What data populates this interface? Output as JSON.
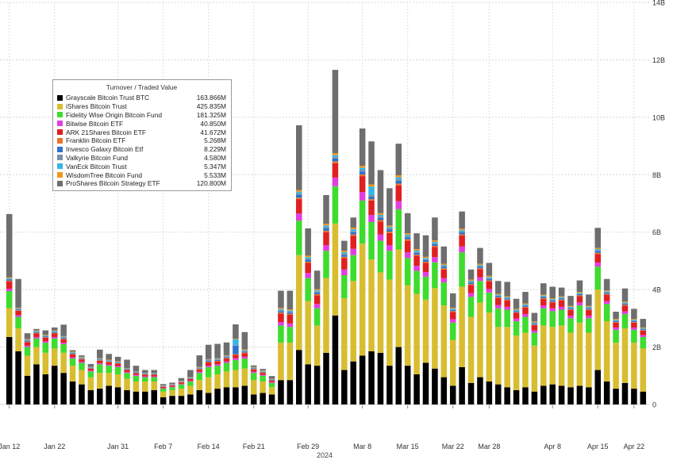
{
  "chart_data": {
    "type": "bar",
    "stacked": true,
    "title": "",
    "xlabel": "2024",
    "ylabel": "",
    "ylim": [
      0,
      14
    ],
    "y_unit": "B",
    "ytick_labels": [
      "0",
      "2B",
      "4B",
      "6B",
      "8B",
      "10B",
      "12B",
      "14B"
    ],
    "xtick_labels": [
      "Jan 12",
      "Jan 22",
      "Jan 31",
      "Feb 7",
      "Feb 14",
      "Feb 21",
      "Feb 29",
      "Mar 8",
      "Mar 15",
      "Mar 22",
      "Mar 28",
      "Apr 8",
      "Apr 15",
      "Apr 22"
    ],
    "xtick_index": [
      0,
      5,
      12,
      17,
      22,
      27,
      33,
      39,
      44,
      49,
      53,
      60,
      65,
      69
    ],
    "grid": true,
    "legend_position": "top-left",
    "legend_title": "Turnover / Traded Value",
    "n_bars": 71,
    "series": [
      {
        "name": "Grayscale Bitcoin Trust BTC",
        "legend_value": "163.866M",
        "color": "#000000",
        "values": [
          2.35,
          1.85,
          1.0,
          1.4,
          1.05,
          1.35,
          1.1,
          0.8,
          0.7,
          0.5,
          0.55,
          0.65,
          0.6,
          0.5,
          0.45,
          0.45,
          0.5,
          0.25,
          0.3,
          0.3,
          0.35,
          0.5,
          0.4,
          0.55,
          0.6,
          0.6,
          0.65,
          0.35,
          0.4,
          0.35,
          0.85,
          0.85,
          1.9,
          1.4,
          1.35,
          1.8,
          3.1,
          1.2,
          1.5,
          1.7,
          1.85,
          1.8,
          1.35,
          2.0,
          1.35,
          1.05,
          1.45,
          1.25,
          0.95,
          0.65,
          1.3,
          0.75,
          0.95,
          0.8,
          0.7,
          0.6,
          0.5,
          0.6,
          0.45,
          0.65,
          0.7,
          0.65,
          0.6,
          0.65,
          0.6,
          1.2,
          0.8,
          0.55,
          0.75,
          0.55,
          0.45
        ]
      },
      {
        "name": "iShares Bitcoin Trust",
        "legend_value": "425.835M",
        "color": "#d9bd30",
        "values": [
          1.0,
          0.8,
          0.7,
          0.6,
          0.75,
          0.6,
          0.7,
          0.55,
          0.5,
          0.45,
          0.55,
          0.45,
          0.45,
          0.4,
          0.35,
          0.35,
          0.3,
          0.2,
          0.2,
          0.25,
          0.3,
          0.35,
          0.55,
          0.5,
          0.55,
          0.6,
          0.6,
          0.5,
          0.4,
          0.25,
          1.3,
          1.3,
          3.3,
          2.2,
          1.4,
          2.6,
          3.2,
          2.5,
          2.8,
          3.9,
          3.2,
          2.8,
          3.0,
          3.4,
          2.8,
          2.8,
          2.2,
          2.8,
          2.5,
          1.6,
          2.8,
          2.3,
          2.6,
          2.4,
          2.0,
          2.1,
          1.9,
          1.9,
          1.6,
          2.1,
          2.0,
          2.1,
          1.9,
          2.2,
          1.9,
          2.8,
          2.1,
          1.6,
          1.9,
          1.6,
          1.5
        ]
      },
      {
        "name": "Fidelity Wise Origin Bitcoin Fund",
        "legend_value": "181.325M",
        "color": "#3ddc2e",
        "values": [
          0.6,
          0.4,
          0.3,
          0.3,
          0.35,
          0.35,
          0.3,
          0.25,
          0.25,
          0.2,
          0.3,
          0.25,
          0.25,
          0.2,
          0.2,
          0.15,
          0.15,
          0.1,
          0.1,
          0.15,
          0.15,
          0.25,
          0.35,
          0.3,
          0.3,
          0.35,
          0.35,
          0.25,
          0.2,
          0.15,
          0.6,
          0.55,
          1.2,
          0.8,
          0.6,
          0.95,
          1.3,
          0.8,
          0.9,
          1.5,
          1.3,
          1.1,
          1.0,
          1.4,
          0.95,
          0.8,
          0.8,
          0.9,
          0.8,
          0.6,
          1.2,
          0.7,
          0.75,
          0.7,
          0.65,
          0.6,
          0.5,
          0.55,
          0.45,
          0.6,
          0.55,
          0.55,
          0.5,
          0.6,
          0.5,
          0.8,
          0.6,
          0.45,
          0.5,
          0.45,
          0.4
        ]
      },
      {
        "name": "Bitwise Bitcoin ETF",
        "legend_value": "40.850M",
        "color": "#e13ee0",
        "values": [
          0.08,
          0.06,
          0.05,
          0.05,
          0.05,
          0.05,
          0.05,
          0.04,
          0.04,
          0.03,
          0.04,
          0.04,
          0.04,
          0.03,
          0.03,
          0.03,
          0.03,
          0.02,
          0.02,
          0.02,
          0.03,
          0.04,
          0.05,
          0.05,
          0.05,
          0.06,
          0.06,
          0.04,
          0.03,
          0.03,
          0.12,
          0.12,
          0.25,
          0.18,
          0.15,
          0.2,
          0.3,
          0.2,
          0.22,
          0.3,
          0.25,
          0.22,
          0.2,
          0.28,
          0.2,
          0.18,
          0.16,
          0.18,
          0.15,
          0.12,
          0.2,
          0.13,
          0.13,
          0.12,
          0.11,
          0.1,
          0.09,
          0.1,
          0.08,
          0.1,
          0.1,
          0.1,
          0.09,
          0.1,
          0.09,
          0.14,
          0.1,
          0.08,
          0.09,
          0.08,
          0.07
        ]
      },
      {
        "name": "ARK 21Shares Bitcoin ETF",
        "legend_value": "41.672M",
        "color": "#e01f1f",
        "values": [
          0.25,
          0.15,
          0.12,
          0.12,
          0.12,
          0.12,
          0.12,
          0.1,
          0.08,
          0.07,
          0.08,
          0.08,
          0.08,
          0.07,
          0.06,
          0.06,
          0.06,
          0.04,
          0.04,
          0.05,
          0.06,
          0.08,
          0.12,
          0.1,
          0.1,
          0.12,
          0.12,
          0.08,
          0.07,
          0.05,
          0.3,
          0.3,
          0.5,
          0.35,
          0.3,
          0.45,
          0.5,
          0.4,
          0.45,
          0.55,
          0.5,
          0.45,
          0.42,
          0.55,
          0.4,
          0.35,
          0.32,
          0.35,
          0.3,
          0.25,
          0.38,
          0.28,
          0.28,
          0.27,
          0.24,
          0.22,
          0.2,
          0.22,
          0.18,
          0.22,
          0.2,
          0.22,
          0.2,
          0.22,
          0.2,
          0.3,
          0.22,
          0.17,
          0.2,
          0.17,
          0.15
        ]
      },
      {
        "name": "Franklin Bitcoin ETF",
        "legend_value": "5.268M",
        "color": "#e8732a",
        "values": [
          0.03,
          0.02,
          0.02,
          0.02,
          0.02,
          0.02,
          0.02,
          0.02,
          0.02,
          0.01,
          0.02,
          0.02,
          0.02,
          0.01,
          0.01,
          0.01,
          0.01,
          0.01,
          0.01,
          0.01,
          0.01,
          0.02,
          0.02,
          0.02,
          0.02,
          0.02,
          0.03,
          0.02,
          0.02,
          0.01,
          0.03,
          0.03,
          0.05,
          0.04,
          0.04,
          0.05,
          0.06,
          0.04,
          0.05,
          0.06,
          0.05,
          0.05,
          0.05,
          0.06,
          0.05,
          0.04,
          0.04,
          0.04,
          0.04,
          0.03,
          0.04,
          0.03,
          0.03,
          0.03,
          0.03,
          0.03,
          0.02,
          0.03,
          0.02,
          0.03,
          0.03,
          0.03,
          0.02,
          0.03,
          0.02,
          0.04,
          0.03,
          0.02,
          0.03,
          0.02,
          0.02
        ]
      },
      {
        "name": "Invesco Galaxy Bitcoin Etf",
        "legend_value": "8.229M",
        "color": "#2e73c9",
        "values": [
          0.04,
          0.03,
          0.03,
          0.03,
          0.03,
          0.03,
          0.03,
          0.02,
          0.02,
          0.02,
          0.02,
          0.02,
          0.02,
          0.02,
          0.02,
          0.02,
          0.02,
          0.01,
          0.01,
          0.01,
          0.02,
          0.02,
          0.03,
          0.03,
          0.03,
          0.3,
          0.03,
          0.02,
          0.02,
          0.02,
          0.05,
          0.05,
          0.1,
          0.07,
          0.06,
          0.08,
          0.1,
          0.07,
          0.08,
          0.1,
          0.09,
          0.08,
          0.07,
          0.1,
          0.07,
          0.06,
          0.06,
          0.06,
          0.05,
          0.04,
          0.07,
          0.05,
          0.05,
          0.05,
          0.04,
          0.04,
          0.04,
          0.04,
          0.03,
          0.04,
          0.04,
          0.04,
          0.04,
          0.04,
          0.04,
          0.06,
          0.04,
          0.03,
          0.04,
          0.03,
          0.03
        ]
      },
      {
        "name": "Valkyrie Bitcoin Fund",
        "legend_value": "4.580M",
        "color": "#7a8ea8",
        "values": [
          0.02,
          0.02,
          0.02,
          0.02,
          0.02,
          0.02,
          0.02,
          0.02,
          0.01,
          0.01,
          0.01,
          0.01,
          0.01,
          0.01,
          0.01,
          0.01,
          0.01,
          0.01,
          0.01,
          0.01,
          0.01,
          0.01,
          0.02,
          0.02,
          0.02,
          0.02,
          0.02,
          0.01,
          0.01,
          0.01,
          0.03,
          0.03,
          0.05,
          0.04,
          0.03,
          0.04,
          0.05,
          0.04,
          0.04,
          0.05,
          0.05,
          0.04,
          0.04,
          0.05,
          0.04,
          0.03,
          0.03,
          0.03,
          0.03,
          0.02,
          0.03,
          0.03,
          0.03,
          0.03,
          0.02,
          0.02,
          0.02,
          0.02,
          0.02,
          0.02,
          0.02,
          0.02,
          0.02,
          0.02,
          0.02,
          0.03,
          0.02,
          0.02,
          0.02,
          0.02,
          0.02
        ]
      },
      {
        "name": "VanEck Bitcoin Trust",
        "legend_value": "5.347M",
        "color": "#35b6e6",
        "values": [
          0.03,
          0.02,
          0.02,
          0.02,
          0.02,
          0.02,
          0.02,
          0.02,
          0.02,
          0.01,
          0.02,
          0.02,
          0.02,
          0.01,
          0.01,
          0.01,
          0.01,
          0.01,
          0.01,
          0.01,
          0.01,
          0.02,
          0.02,
          0.02,
          0.02,
          0.2,
          0.03,
          0.02,
          0.02,
          0.01,
          0.04,
          0.04,
          0.06,
          0.05,
          0.04,
          0.06,
          0.07,
          0.05,
          0.06,
          0.08,
          0.3,
          0.06,
          0.05,
          0.07,
          0.05,
          0.05,
          0.04,
          0.05,
          0.04,
          0.03,
          0.05,
          0.04,
          0.04,
          0.04,
          0.03,
          0.03,
          0.03,
          0.03,
          0.03,
          0.03,
          0.03,
          0.03,
          0.03,
          0.03,
          0.03,
          0.04,
          0.03,
          0.03,
          0.03,
          0.03,
          0.02
        ]
      },
      {
        "name": "WisdomTree Bitcoin Fund",
        "legend_value": "5.533M",
        "color": "#f0961d",
        "values": [
          0.03,
          0.02,
          0.02,
          0.02,
          0.02,
          0.02,
          0.02,
          0.02,
          0.02,
          0.01,
          0.02,
          0.02,
          0.02,
          0.01,
          0.01,
          0.01,
          0.01,
          0.01,
          0.01,
          0.01,
          0.01,
          0.02,
          0.02,
          0.02,
          0.02,
          0.02,
          0.03,
          0.02,
          0.02,
          0.01,
          0.04,
          0.04,
          0.06,
          0.05,
          0.04,
          0.06,
          0.07,
          0.05,
          0.06,
          0.07,
          0.07,
          0.06,
          0.05,
          0.07,
          0.05,
          0.05,
          0.04,
          0.05,
          0.04,
          0.03,
          0.05,
          0.04,
          0.04,
          0.04,
          0.03,
          0.03,
          0.03,
          0.03,
          0.03,
          0.03,
          0.03,
          0.03,
          0.03,
          0.03,
          0.03,
          0.04,
          0.03,
          0.03,
          0.03,
          0.03,
          0.02
        ]
      },
      {
        "name": "ProShares Bitcoin Strategy ETF",
        "legend_value": "120.800M",
        "color": "#6e6e6e",
        "values": [
          2.2,
          1.0,
          0.2,
          0.05,
          0.15,
          0.1,
          0.4,
          0.05,
          0.05,
          0.1,
          0.3,
          0.2,
          0.15,
          0.3,
          0.2,
          0.1,
          0.1,
          0.05,
          0.05,
          0.1,
          0.25,
          0.4,
          0.5,
          0.5,
          0.45,
          0.5,
          0.6,
          0.05,
          0.05,
          0.1,
          0.6,
          0.65,
          2.25,
          0.95,
          0.65,
          1.0,
          2.9,
          0.35,
          0.35,
          1.3,
          1.5,
          1.5,
          1.3,
          1.1,
          0.7,
          0.55,
          0.75,
          0.8,
          0.6,
          0.5,
          0.6,
          0.35,
          0.55,
          0.45,
          0.45,
          0.5,
          0.35,
          0.4,
          0.3,
          0.4,
          0.4,
          0.3,
          0.35,
          0.4,
          0.4,
          0.7,
          0.4,
          0.25,
          0.45,
          0.35,
          0.3
        ]
      }
    ]
  }
}
